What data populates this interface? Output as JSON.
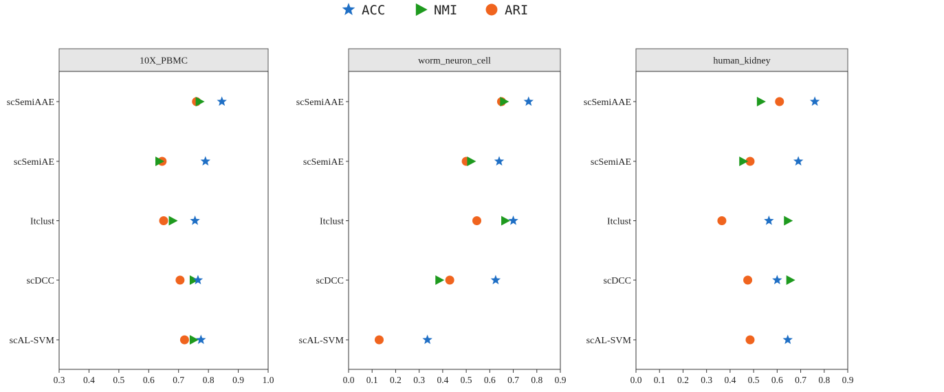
{
  "legend": [
    {
      "name": "ACC",
      "marker": "star",
      "color": "#1f6fc5"
    },
    {
      "name": "NMI",
      "marker": "triangle-right",
      "color": "#1e9a1e"
    },
    {
      "name": "ARI",
      "marker": "circle",
      "color": "#f0641e"
    }
  ],
  "chart_data": [
    {
      "type": "scatter",
      "title": "10X_PBMC",
      "categories": [
        "scSemiAAE",
        "scSemiAE",
        "Itclust",
        "scDCC",
        "scAL-SVM"
      ],
      "xlim": [
        0.3,
        1.0
      ],
      "xticks": [
        0.3,
        0.4,
        0.5,
        0.6,
        0.7,
        0.8,
        0.9,
        1.0
      ],
      "xtick_labels": [
        "0.3",
        "0.4",
        "0.5",
        "0.6",
        "0.7",
        "0.8",
        "0.9",
        "1.0"
      ],
      "series": [
        {
          "name": "ACC",
          "values": [
            0.845,
            0.79,
            0.755,
            0.765,
            0.775
          ]
        },
        {
          "name": "NMI",
          "values": [
            0.77,
            0.635,
            0.68,
            0.75,
            0.75
          ]
        },
        {
          "name": "ARI",
          "values": [
            0.76,
            0.645,
            0.65,
            0.705,
            0.72
          ]
        }
      ]
    },
    {
      "type": "scatter",
      "title": "worm_neuron_cell",
      "categories": [
        "scSemiAAE",
        "scSemiAE",
        "Itclust",
        "scDCC",
        "scAL-SVM"
      ],
      "xlim": [
        0.0,
        0.9
      ],
      "xticks": [
        0.0,
        0.1,
        0.2,
        0.3,
        0.4,
        0.5,
        0.6,
        0.7,
        0.8,
        0.9
      ],
      "xtick_labels": [
        "0.0",
        "0.1",
        "0.2",
        "0.3",
        "0.4",
        "0.5",
        "0.6",
        "0.7",
        "0.8",
        "0.9"
      ],
      "series": [
        {
          "name": "ACC",
          "values": [
            0.765,
            0.64,
            0.7,
            0.625,
            0.335
          ]
        },
        {
          "name": "NMI",
          "values": [
            0.66,
            0.52,
            0.665,
            0.385,
            null
          ]
        },
        {
          "name": "ARI",
          "values": [
            0.65,
            0.5,
            0.545,
            0.43,
            0.13
          ]
        }
      ]
    },
    {
      "type": "scatter",
      "title": "human_kidney",
      "categories": [
        "scSemiAAE",
        "scSemiAE",
        "Itclust",
        "scDCC",
        "scAL-SVM"
      ],
      "xlim": [
        0.0,
        0.9
      ],
      "xticks": [
        0.0,
        0.1,
        0.2,
        0.3,
        0.4,
        0.5,
        0.6,
        0.7,
        0.8,
        0.9
      ],
      "xtick_labels": [
        "0.0",
        "0.1",
        "0.2",
        "0.3",
        "0.4",
        "0.5",
        "0.6",
        "0.7",
        "0.8",
        "0.9"
      ],
      "series": [
        {
          "name": "ACC",
          "values": [
            0.76,
            0.69,
            0.565,
            0.6,
            0.645
          ]
        },
        {
          "name": "NMI",
          "values": [
            0.53,
            0.455,
            0.645,
            0.655,
            null
          ]
        },
        {
          "name": "ARI",
          "values": [
            0.61,
            0.485,
            0.365,
            0.475,
            0.485
          ]
        }
      ]
    }
  ]
}
